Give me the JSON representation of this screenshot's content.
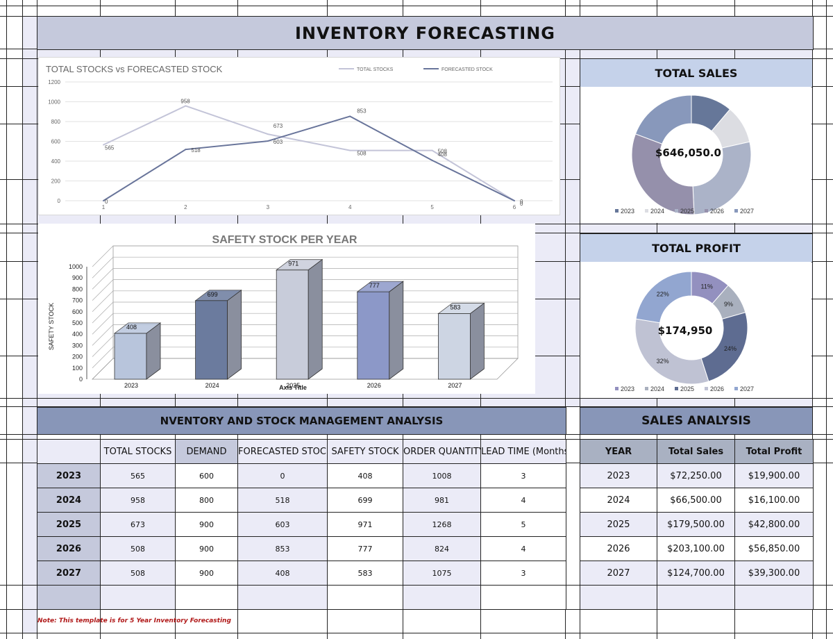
{
  "page_title": "INVENTORY FORECASTING",
  "colors": {
    "header": "#c5c9dc",
    "section": "#8896b8",
    "light": "#ebebf7",
    "sales_head": "#c5d2ea",
    "note": "#b01818"
  },
  "line_chart": {
    "title": "TOTAL STOCKS vs FORECASTED STOCK",
    "chart_data": {
      "type": "line",
      "x": [
        1,
        2,
        3,
        4,
        5,
        6
      ],
      "ylim": [
        0,
        1200
      ],
      "yticks": [
        0,
        200,
        400,
        600,
        800,
        1000,
        1200
      ],
      "series": [
        {
          "name": "TOTAL STOCKS",
          "values": [
            565,
            958,
            673,
            508,
            508,
            0
          ],
          "color": "#c3c4d8"
        },
        {
          "name": "FORECASTED STOCK",
          "values": [
            0,
            518,
            603,
            853,
            408,
            0
          ],
          "color": "#68749a"
        }
      ]
    }
  },
  "bar_chart": {
    "title": "SAFETY STOCK PER YEAR",
    "ylabel": "SAFETY STOCK",
    "xlabel": "Axis Title",
    "chart_data": {
      "type": "bar",
      "categories": [
        "2023",
        "2024",
        "2025",
        "2026",
        "2027"
      ],
      "values": [
        408,
        699,
        971,
        777,
        583
      ],
      "ylim": [
        0,
        1000
      ],
      "yticks": [
        0,
        100,
        200,
        300,
        400,
        500,
        600,
        700,
        800,
        900,
        1000
      ],
      "colors": [
        "#b8c5dc",
        "#6b7b9e",
        "#c8ccda",
        "#8c98c8",
        "#cdd5e3"
      ]
    }
  },
  "sales_donut": {
    "title": "TOTAL SALES",
    "center": "$646,050.0",
    "legend": [
      "2023",
      "2024",
      "2025",
      "2026",
      "2027"
    ],
    "chart_data": {
      "type": "pie",
      "categories": [
        "2023",
        "2024",
        "2025",
        "2026",
        "2027"
      ],
      "values": [
        72250,
        66500,
        179500,
        203100,
        124700
      ],
      "colors": [
        "#667799",
        "#dcdde2",
        "#abb3c8",
        "#9590ab",
        "#8898bb"
      ]
    }
  },
  "profit_donut": {
    "title": "TOTAL PROFIT",
    "center": "$174,950",
    "legend": [
      "2023",
      "2024",
      "2025",
      "2026",
      "2027"
    ],
    "chart_data": {
      "type": "pie",
      "categories": [
        "2023",
        "2024",
        "2025",
        "2026",
        "2027"
      ],
      "values": [
        19900,
        16100,
        42800,
        56850,
        39300
      ],
      "labels": [
        "11%",
        "9%",
        "24%",
        "32%",
        "22%"
      ],
      "colors": [
        "#9390bf",
        "#a9b0be",
        "#5e6c91",
        "#bfc2d3",
        "#92a6d0"
      ]
    }
  },
  "inventory": {
    "title": "NVENTORY AND STOCK MANAGEMENT ANALYSIS",
    "headers": [
      "TOTAL STOCKS",
      "DEMAND",
      "FORECASTED STOCK",
      "SAFETY STOCK",
      "ORDER QUANTITY",
      "LEAD TIME (Months)"
    ],
    "rows": [
      [
        "2023",
        "565",
        "600",
        "0",
        "408",
        "1008",
        "3"
      ],
      [
        "2024",
        "958",
        "800",
        "518",
        "699",
        "981",
        "4"
      ],
      [
        "2025",
        "673",
        "900",
        "603",
        "971",
        "1268",
        "5"
      ],
      [
        "2026",
        "508",
        "900",
        "853",
        "777",
        "824",
        "4"
      ],
      [
        "2027",
        "508",
        "900",
        "408",
        "583",
        "1075",
        "3"
      ]
    ]
  },
  "sales": {
    "title": "SALES ANALYSIS",
    "headers": [
      "YEAR",
      "Total Sales",
      "Total Profit"
    ],
    "rows": [
      [
        "2023",
        "$72,250.00",
        "$19,900.00"
      ],
      [
        "2024",
        "$66,500.00",
        "$16,100.00"
      ],
      [
        "2025",
        "$179,500.00",
        "$42,800.00"
      ],
      [
        "2026",
        "$203,100.00",
        "$56,850.00"
      ],
      [
        "2027",
        "$124,700.00",
        "$39,300.00"
      ]
    ]
  },
  "note": "Note: This template is for 5 Year Inventory Forecasting"
}
